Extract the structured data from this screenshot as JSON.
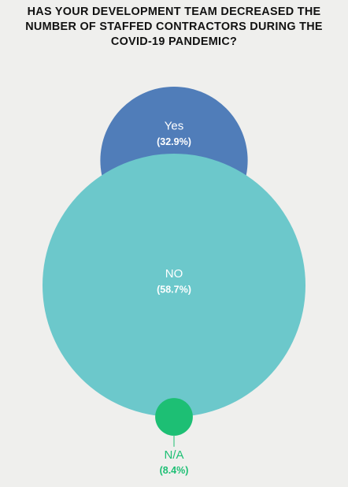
{
  "chart_data": {
    "type": "bubble",
    "title": "HAS YOUR DEVELOPMENT TEAM DECREASED THE NUMBER OF STAFFED CONTRACTORS DURING THE COVID-19 PANDEMIC?",
    "categories": [
      "Yes",
      "NO",
      "N/A"
    ],
    "values": [
      32.9,
      58.7,
      8.4
    ],
    "value_labels": [
      "(32.9%)",
      "(58.7%)",
      "(8.4%)"
    ],
    "colors": [
      "#507db9",
      "#6cc8cb",
      "#1dbf74"
    ]
  }
}
